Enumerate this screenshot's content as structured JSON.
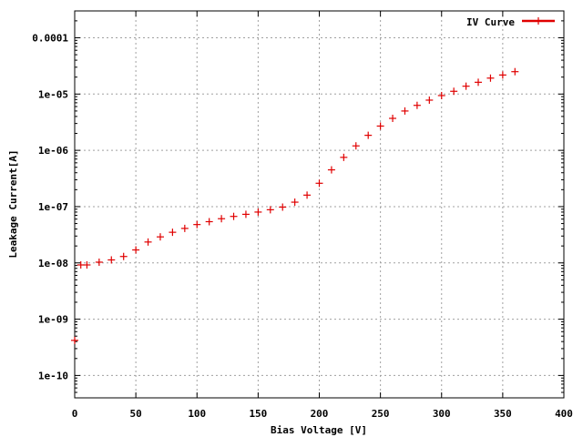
{
  "chart_data": {
    "type": "scatter",
    "xlabel": "Bias Voltage [V]",
    "ylabel": "Leakage Current[A]",
    "xlim": [
      0,
      400
    ],
    "ylim": [
      4e-11,
      0.0003
    ],
    "yscale": "log",
    "grid": true,
    "legend_position": "top-right",
    "x_ticks": [
      {
        "value": 0,
        "label": "0"
      },
      {
        "value": 50,
        "label": "50"
      },
      {
        "value": 100,
        "label": "100"
      },
      {
        "value": 150,
        "label": "150"
      },
      {
        "value": 200,
        "label": "200"
      },
      {
        "value": 250,
        "label": "250"
      },
      {
        "value": 300,
        "label": "300"
      },
      {
        "value": 350,
        "label": "350"
      },
      {
        "value": 400,
        "label": "400"
      }
    ],
    "y_ticks": [
      {
        "value": 1e-10,
        "label": "1e-10"
      },
      {
        "value": 1e-09,
        "label": "1e-09"
      },
      {
        "value": 1e-08,
        "label": "1e-08"
      },
      {
        "value": 1e-07,
        "label": "1e-07"
      },
      {
        "value": 1e-06,
        "label": "1e-06"
      },
      {
        "value": 1e-05,
        "label": "1e-05"
      },
      {
        "value": 0.0001,
        "label": "0.0001"
      }
    ],
    "series": [
      {
        "name": "IV Curve",
        "color": "#e00000",
        "marker": "plus",
        "x": [
          0,
          5,
          10,
          20,
          30,
          40,
          50,
          60,
          70,
          80,
          90,
          100,
          110,
          120,
          130,
          140,
          150,
          160,
          170,
          180,
          190,
          200,
          210,
          220,
          230,
          240,
          250,
          260,
          270,
          280,
          290,
          300,
          310,
          320,
          330,
          340,
          350,
          360
        ],
        "y": [
          4.2e-10,
          9.2e-09,
          9.2e-09,
          1.03e-08,
          1.13e-08,
          1.3e-08,
          1.7e-08,
          2.35e-08,
          2.9e-08,
          3.5e-08,
          4.1e-08,
          4.8e-08,
          5.4e-08,
          6.1e-08,
          6.7e-08,
          7.3e-08,
          8e-08,
          8.8e-08,
          9.8e-08,
          1.2e-07,
          1.6e-07,
          2.6e-07,
          4.5e-07,
          7.5e-07,
          1.2e-06,
          1.85e-06,
          2.7e-06,
          3.7e-06,
          5e-06,
          6.3e-06,
          7.8e-06,
          9.4e-06,
          1.12e-05,
          1.38e-05,
          1.62e-05,
          1.92e-05,
          2.18e-05,
          2.5e-05
        ]
      }
    ]
  }
}
